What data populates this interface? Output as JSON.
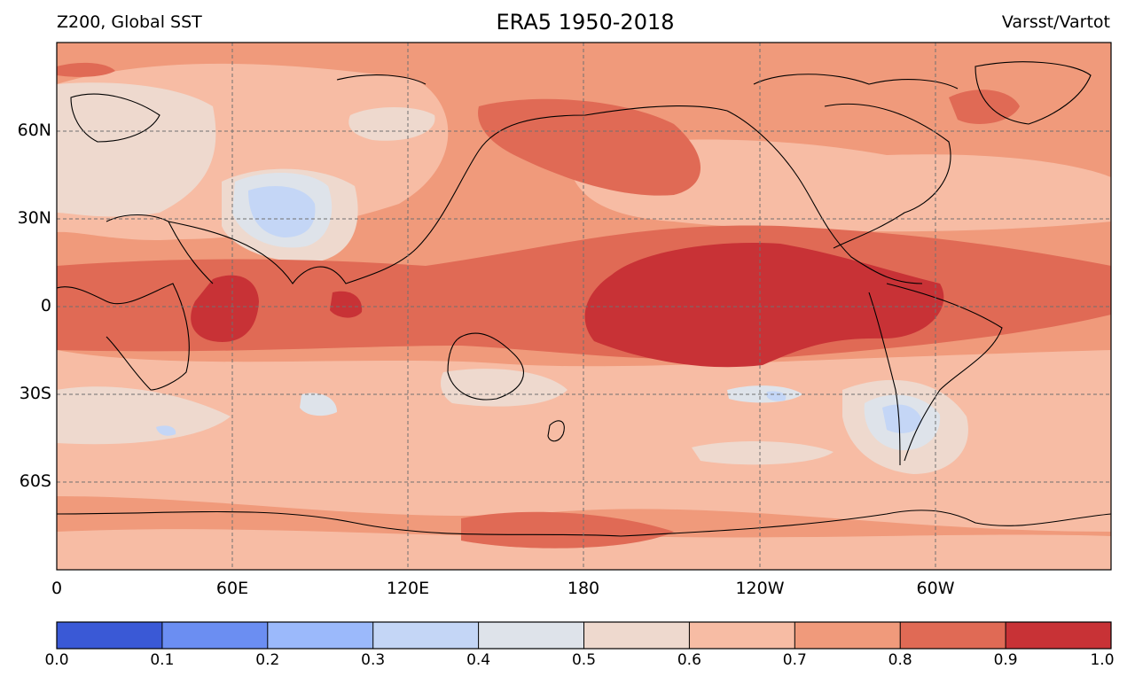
{
  "titles": {
    "left": "Z200, Global SST",
    "center": "ERA5 1950-2018",
    "right": "Varsst/Vartot"
  },
  "lat_labels": [
    "60N",
    "30N",
    "0",
    "30S",
    "60S"
  ],
  "lon_labels": [
    "0",
    "60E",
    "120E",
    "180",
    "120W",
    "60W"
  ],
  "colorbar": {
    "ticks": [
      "0.0",
      "0.1",
      "0.2",
      "0.3",
      "0.4",
      "0.5",
      "0.6",
      "0.7",
      "0.8",
      "0.9",
      "1.0"
    ],
    "colors": [
      "#3a59d6",
      "#6b8ef2",
      "#9bb9fb",
      "#c4d6f6",
      "#dee3ea",
      "#eed9ce",
      "#f7bca4",
      "#f09a7b",
      "#e06a55",
      "#c83236"
    ]
  }
}
